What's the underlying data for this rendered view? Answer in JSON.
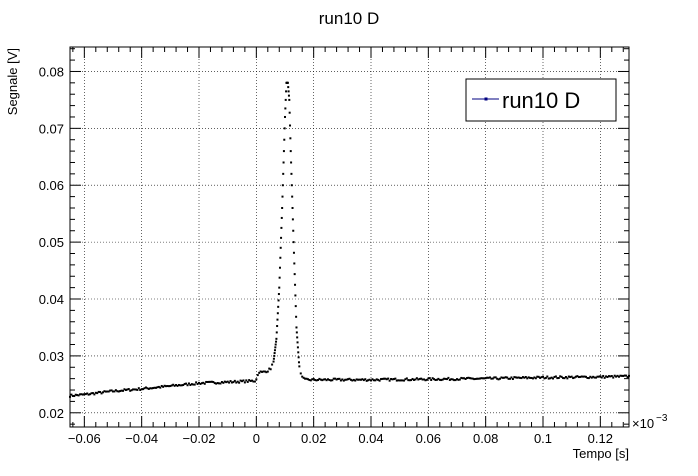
{
  "chart_data": {
    "type": "scatter",
    "title": "run10 D",
    "xlabel": "Tempo [s]",
    "ylabel": "Segnale [V]",
    "x_multiplier_label": "×10",
    "x_multiplier_exp": "−3",
    "xlim": [
      -0.065,
      0.13
    ],
    "ylim": [
      0.0175,
      0.0843
    ],
    "x_ticks": [
      -0.06,
      -0.04,
      -0.02,
      0,
      0.02,
      0.04,
      0.06,
      0.08,
      0.1,
      0.12
    ],
    "x_tick_labels": [
      "−0.06",
      "−0.04",
      "−0.02",
      "0",
      "0.02",
      "0.04",
      "0.06",
      "0.08",
      "0.1",
      "0.12"
    ],
    "y_ticks": [
      0.02,
      0.03,
      0.04,
      0.05,
      0.06,
      0.07,
      0.08
    ],
    "y_tick_labels": [
      "0.02",
      "0.03",
      "0.04",
      "0.05",
      "0.06",
      "0.07",
      "0.08"
    ],
    "grid": true,
    "legend": {
      "position": "top-right",
      "entries": [
        "run10 D"
      ]
    },
    "series": [
      {
        "name": "run10 D",
        "color": "#000000",
        "legend_color": "#000080",
        "sample_step": 0.0005,
        "baseline_points": [
          [
            -0.065,
            0.023
          ],
          [
            -0.06,
            0.0232
          ],
          [
            -0.05,
            0.0238
          ],
          [
            -0.04,
            0.0242
          ],
          [
            -0.03,
            0.0247
          ],
          [
            -0.02,
            0.0252
          ],
          [
            -0.01,
            0.0254
          ],
          [
            -0.0005,
            0.0256
          ],
          [
            0.0,
            0.026
          ],
          [
            0.001,
            0.0272
          ],
          [
            0.002,
            0.0271
          ],
          [
            0.004,
            0.0274
          ],
          [
            0.005,
            0.0278
          ],
          [
            0.006,
            0.029
          ],
          [
            0.007,
            0.033
          ],
          [
            0.008,
            0.042
          ],
          [
            0.009,
            0.056
          ],
          [
            0.01,
            0.072
          ],
          [
            0.0105,
            0.078
          ],
          [
            0.011,
            0.078
          ],
          [
            0.0115,
            0.075
          ],
          [
            0.012,
            0.066
          ],
          [
            0.013,
            0.05
          ],
          [
            0.014,
            0.035
          ],
          [
            0.015,
            0.028
          ],
          [
            0.016,
            0.0262
          ],
          [
            0.017,
            0.0258
          ],
          [
            0.02,
            0.0258
          ],
          [
            0.04,
            0.0258
          ],
          [
            0.06,
            0.0259
          ],
          [
            0.08,
            0.026
          ],
          [
            0.1,
            0.0262
          ],
          [
            0.12,
            0.0263
          ],
          [
            0.13,
            0.0264
          ]
        ]
      }
    ]
  }
}
